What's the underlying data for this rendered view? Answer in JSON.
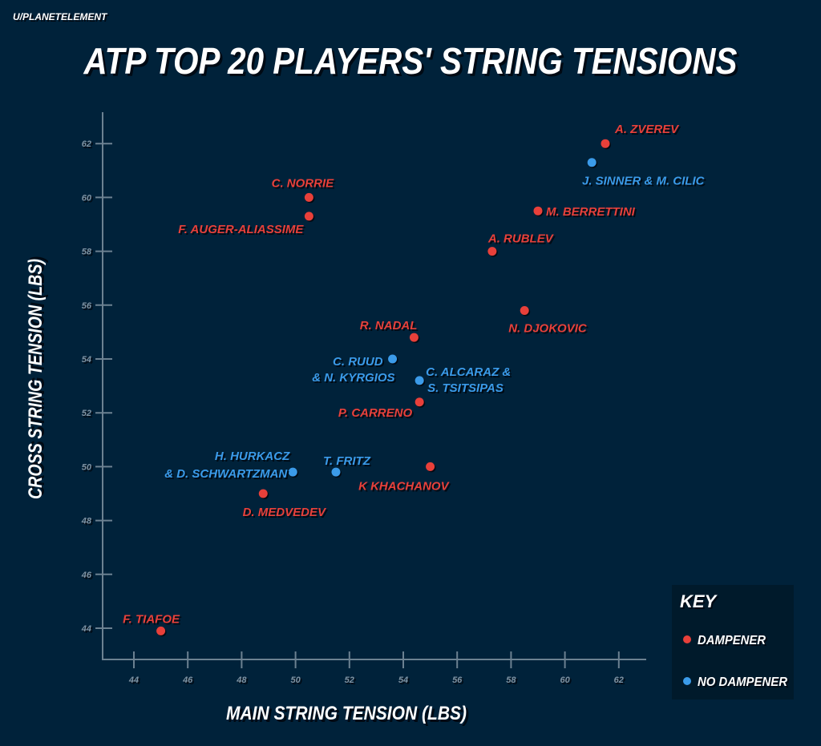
{
  "credit": "U/PLANETELEMENT",
  "chart_data": {
    "type": "scatter",
    "title": "ATP TOP 20 PLAYERS' STRING TENSIONS",
    "xlabel": "MAIN STRING TENSION (LBS)",
    "ylabel": "CROSS STRING TENSION (LBS)",
    "xlim": [
      43,
      63
    ],
    "ylim": [
      43,
      63
    ],
    "xticks": [
      44,
      46,
      48,
      50,
      52,
      54,
      56,
      58,
      60,
      62
    ],
    "yticks": [
      44,
      46,
      48,
      50,
      52,
      54,
      56,
      58,
      60,
      62
    ],
    "grid": false,
    "legend": {
      "title": "KEY",
      "placement": "bottom-right",
      "entries": [
        {
          "name": "DAMPENER",
          "color": "#e8403a"
        },
        {
          "name": "NO DAMPENER",
          "color": "#3b9be9"
        }
      ]
    },
    "points": [
      {
        "label": [
          "A. ZVEREV"
        ],
        "x": 61.5,
        "y": 62,
        "group": "DAMPENER"
      },
      {
        "label": [
          "J. SINNER & M. CILIC"
        ],
        "x": 61,
        "y": 61.3,
        "group": "NO DAMPENER"
      },
      {
        "label": [
          "M. BERRETTINI"
        ],
        "x": 59,
        "y": 59.5,
        "group": "DAMPENER"
      },
      {
        "label": [
          "A. RUBLEV"
        ],
        "x": 57.3,
        "y": 58,
        "group": "DAMPENER"
      },
      {
        "label": [
          "N. DJOKOVIC"
        ],
        "x": 58.5,
        "y": 55.8,
        "group": "DAMPENER"
      },
      {
        "label": [
          "C. NORRIE"
        ],
        "x": 50.5,
        "y": 60,
        "group": "DAMPENER"
      },
      {
        "label": [
          "F. AUGER-ALIASSIME"
        ],
        "x": 50.5,
        "y": 59.3,
        "group": "DAMPENER"
      },
      {
        "label": [
          "R. NADAL"
        ],
        "x": 54.4,
        "y": 54.8,
        "group": "DAMPENER"
      },
      {
        "label": [
          "C. RUUD",
          "& N. KYRGIOS"
        ],
        "x": 53.6,
        "y": 54,
        "group": "NO DAMPENER"
      },
      {
        "label": [
          "C. ALCARAZ &",
          "S. TSITSIPAS"
        ],
        "x": 54.6,
        "y": 53.2,
        "group": "NO DAMPENER"
      },
      {
        "label": [
          "P. CARRENO"
        ],
        "x": 54.6,
        "y": 52.4,
        "group": "DAMPENER"
      },
      {
        "label": [
          "K KHACHANOV"
        ],
        "x": 55,
        "y": 50,
        "group": "DAMPENER"
      },
      {
        "label": [
          "T. FRITZ"
        ],
        "x": 51.5,
        "y": 49.8,
        "group": "NO DAMPENER"
      },
      {
        "label": [
          "H. HURKACZ",
          "& D. SCHWARTZMAN"
        ],
        "x": 49.9,
        "y": 49.8,
        "group": "NO DAMPENER"
      },
      {
        "label": [
          "D. MEDVEDEV"
        ],
        "x": 48.8,
        "y": 49,
        "group": "DAMPENER"
      },
      {
        "label": [
          "F. TIAFOE"
        ],
        "x": 45,
        "y": 43.9,
        "group": "DAMPENER"
      }
    ]
  }
}
